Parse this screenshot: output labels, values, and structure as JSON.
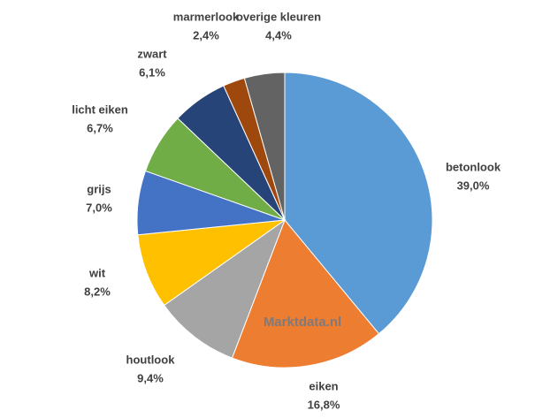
{
  "chart_data": {
    "type": "pie",
    "categories": [
      "betonlook",
      "eiken",
      "houtlook",
      "wit",
      "grijs",
      "licht eiken",
      "zwart",
      "marmerlook",
      "overige kleuren"
    ],
    "values": [
      39.0,
      16.8,
      9.4,
      8.2,
      7.0,
      6.7,
      6.1,
      2.4,
      4.4
    ],
    "value_labels": [
      "39,0%",
      "16,8%",
      "9,4%",
      "8,2%",
      "7,0%",
      "6,7%",
      "6,1%",
      "2,4%",
      "4,4%"
    ],
    "colors": [
      "#5b9bd5",
      "#ed7d31",
      "#a5a5a5",
      "#ffc000",
      "#4472c4",
      "#70ad47",
      "#264478",
      "#9e480e",
      "#636363"
    ],
    "watermark": "Marktdata.nl"
  }
}
